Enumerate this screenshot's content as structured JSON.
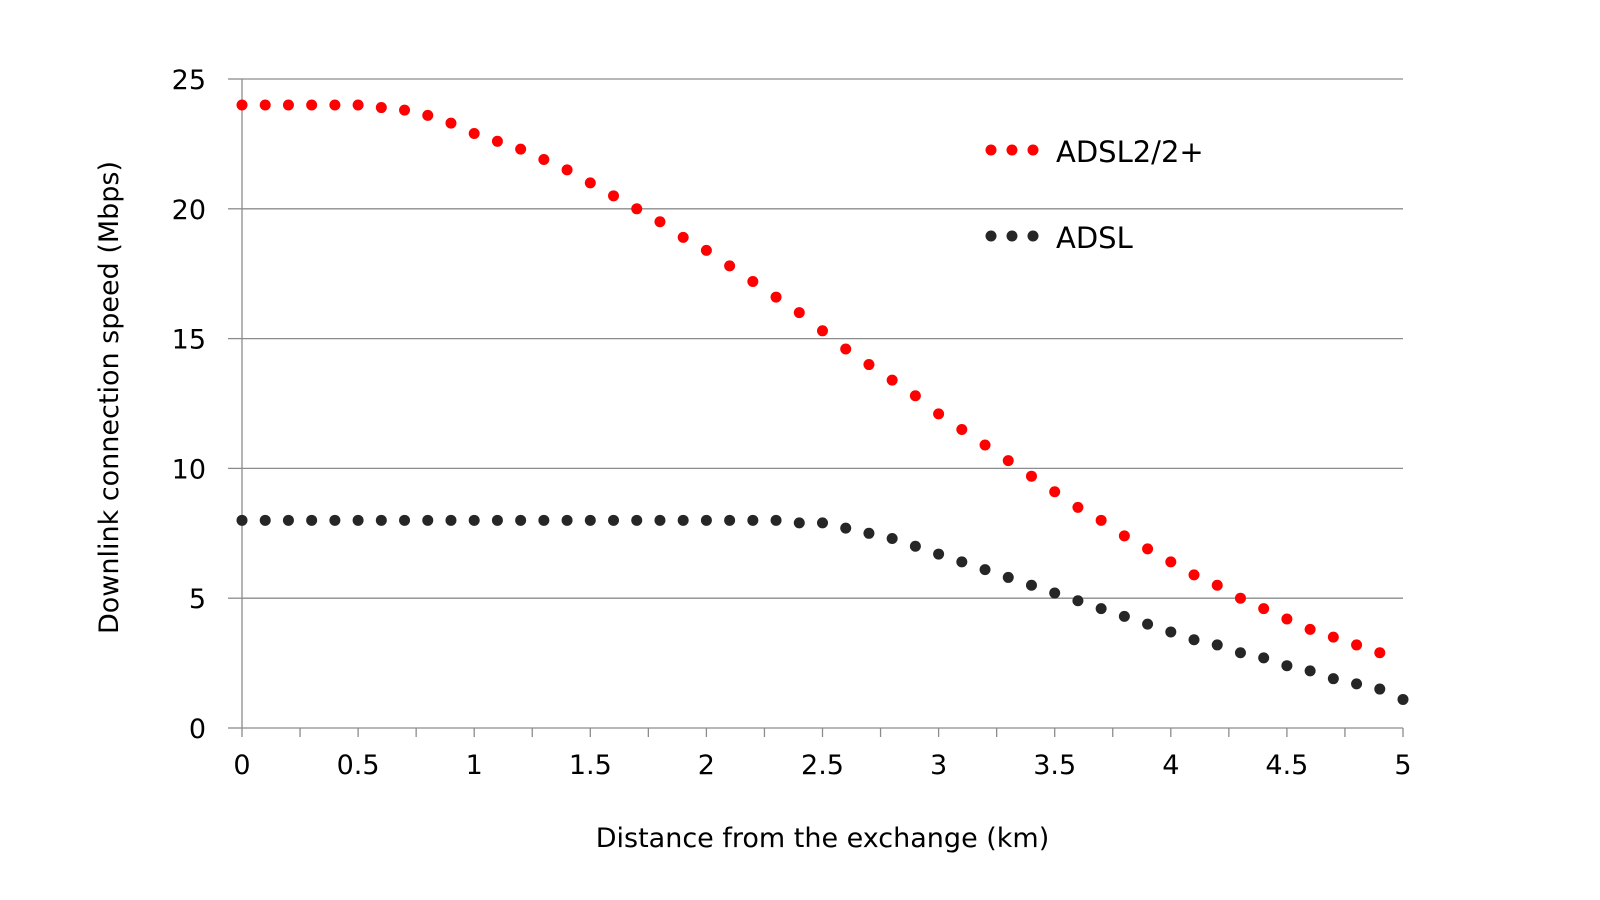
{
  "chart_data": {
    "type": "scatter",
    "title": "",
    "xlabel": "Distance from the exchange (km)",
    "ylabel": "Downlink connection speed (Mbps)",
    "xlim": [
      0,
      5
    ],
    "ylim": [
      0,
      25
    ],
    "x_ticks": [
      "0",
      "0.5",
      "1",
      "1.5",
      "2",
      "2.5",
      "3",
      "3.5",
      "4",
      "4.5",
      "5"
    ],
    "y_ticks": [
      "0",
      "5",
      "10",
      "15",
      "20",
      "25"
    ],
    "grid": "horizontal",
    "legend_position": "top-right",
    "series": [
      {
        "name": "ADSL2/2+",
        "color": "#ff0000",
        "x": [
          0,
          0.1,
          0.2,
          0.3,
          0.4,
          0.5,
          0.6,
          0.7,
          0.8,
          0.9,
          1.0,
          1.1,
          1.2,
          1.3,
          1.4,
          1.5,
          1.6,
          1.7,
          1.8,
          1.9,
          2.0,
          2.1,
          2.2,
          2.3,
          2.4,
          2.5,
          2.6,
          2.7,
          2.8,
          2.9,
          3.0,
          3.1,
          3.2,
          3.3,
          3.4,
          3.5,
          3.6,
          3.7,
          3.8,
          3.9,
          4.0,
          4.1,
          4.2,
          4.3,
          4.4,
          4.5,
          4.6,
          4.7,
          4.8,
          4.9
        ],
        "y": [
          24.0,
          24.0,
          24.0,
          24.0,
          24.0,
          24.0,
          23.9,
          23.8,
          23.6,
          23.3,
          22.9,
          22.6,
          22.3,
          21.9,
          21.5,
          21.0,
          20.5,
          20.0,
          19.5,
          18.9,
          18.4,
          17.8,
          17.2,
          16.6,
          16.0,
          15.3,
          14.6,
          14.0,
          13.4,
          12.8,
          12.1,
          11.5,
          10.9,
          10.3,
          9.7,
          9.1,
          8.5,
          8.0,
          7.4,
          6.9,
          6.4,
          5.9,
          5.5,
          5.0,
          4.6,
          4.2,
          3.8,
          3.5,
          3.2,
          2.9
        ]
      },
      {
        "name": "ADSL",
        "color": "#262626",
        "x": [
          0,
          0.1,
          0.2,
          0.3,
          0.4,
          0.5,
          0.6,
          0.7,
          0.8,
          0.9,
          1.0,
          1.1,
          1.2,
          1.3,
          1.4,
          1.5,
          1.6,
          1.7,
          1.8,
          1.9,
          2.0,
          2.1,
          2.2,
          2.3,
          2.4,
          2.5,
          2.6,
          2.7,
          2.8,
          2.9,
          3.0,
          3.1,
          3.2,
          3.3,
          3.4,
          3.5,
          3.6,
          3.7,
          3.8,
          3.9,
          4.0,
          4.1,
          4.2,
          4.3,
          4.4,
          4.5,
          4.6,
          4.7,
          4.8,
          4.9,
          5.0
        ],
        "y": [
          8.0,
          8.0,
          8.0,
          8.0,
          8.0,
          8.0,
          8.0,
          8.0,
          8.0,
          8.0,
          8.0,
          8.0,
          8.0,
          8.0,
          8.0,
          8.0,
          8.0,
          8.0,
          8.0,
          8.0,
          8.0,
          8.0,
          8.0,
          8.0,
          7.9,
          7.9,
          7.7,
          7.5,
          7.3,
          7.0,
          6.7,
          6.4,
          6.1,
          5.8,
          5.5,
          5.2,
          4.9,
          4.6,
          4.3,
          4.0,
          3.7,
          3.4,
          3.2,
          2.9,
          2.7,
          2.4,
          2.2,
          1.9,
          1.7,
          1.5,
          1.1
        ]
      }
    ]
  }
}
